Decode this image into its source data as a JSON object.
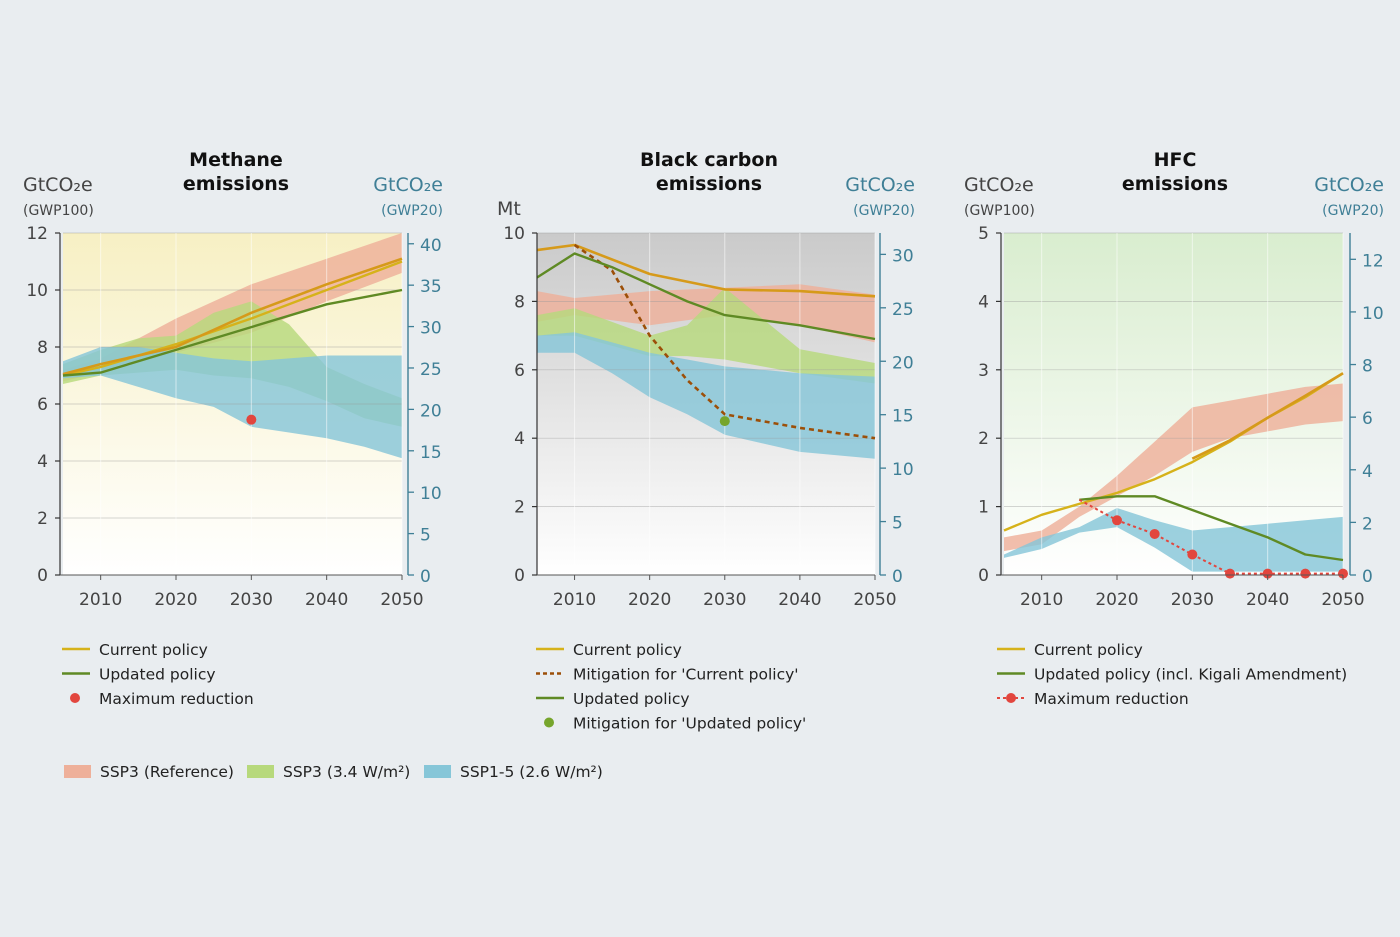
{
  "colors": {
    "current_policy": "#d6b21a",
    "current_policy_bc": "#d69a1a",
    "updated_policy": "#5f8a24",
    "max_reduction": "#e2463e",
    "mitigation_current": "#9c4f08",
    "mitigation_updated": "#76a52c",
    "ssp3_ref": "#eeb09a",
    "ssp3_34": "#b7d97c",
    "ssp1_5": "#86c6d8",
    "right_axis": "#3f7f96"
  },
  "chart_data": [
    {
      "type": "line",
      "title_lines": [
        "Methane",
        "emissions"
      ],
      "left_unit": "GtCO₂e",
      "left_unit_sub": "(GWP100)",
      "right_unit": "GtCO₂e",
      "right_unit_sub": "(GWP20)",
      "xlim": [
        2005,
        2050
      ],
      "x_ticks": [
        2010,
        2020,
        2030,
        2040,
        2050
      ],
      "ylim": [
        0,
        12
      ],
      "y_ticks": [
        0,
        2,
        4,
        6,
        8,
        10,
        12
      ],
      "y2lim": [
        0,
        41.3
      ],
      "y2_ticks": [
        0,
        5,
        10,
        15,
        20,
        25,
        30,
        35,
        40
      ],
      "background": "yellow",
      "bands": [
        {
          "name": "SSP3 (Reference)",
          "color_key": "ssp3_ref",
          "x": [
            2005,
            2010,
            2020,
            2030,
            2040,
            2050
          ],
          "lower": [
            6.8,
            7.1,
            7.8,
            8.5,
            9.6,
            10.6
          ],
          "upper": [
            7.2,
            7.6,
            9.0,
            10.2,
            11.1,
            12.0
          ]
        },
        {
          "name": "SSP3 (3.4 W/m²)",
          "color_key": "ssp3_34",
          "x": [
            2005,
            2010,
            2015,
            2020,
            2025,
            2030,
            2035,
            2040,
            2045,
            2050
          ],
          "lower": [
            6.7,
            7.0,
            7.1,
            7.2,
            7.0,
            6.9,
            6.6,
            6.1,
            5.5,
            5.2
          ],
          "upper": [
            7.4,
            7.9,
            8.3,
            8.4,
            9.2,
            9.6,
            8.8,
            7.3,
            6.7,
            6.2
          ]
        },
        {
          "name": "SSP1-5 (2.6 W/m²)",
          "color_key": "ssp1_5",
          "x": [
            2005,
            2010,
            2015,
            2020,
            2025,
            2030,
            2035,
            2040,
            2045,
            2050
          ],
          "lower": [
            6.9,
            7.0,
            6.6,
            6.2,
            5.9,
            5.2,
            5.0,
            4.8,
            4.5,
            4.1
          ],
          "upper": [
            7.5,
            8.0,
            8.0,
            7.8,
            7.6,
            7.5,
            7.6,
            7.7,
            7.7,
            7.7
          ]
        }
      ],
      "series": [
        {
          "name": "Current policy",
          "color_key": "current_policy",
          "width": 2.4,
          "x": [
            2005,
            2010,
            2020,
            2030,
            2040,
            2050
          ],
          "y": [
            7.0,
            7.3,
            8.1,
            9.0,
            10.0,
            11.0
          ]
        },
        {
          "name": "Current policy",
          "color_key": "current_policy_bc",
          "width": 2.6,
          "x": [
            2005,
            2010,
            2020,
            2030,
            2040,
            2050
          ],
          "y": [
            7.05,
            7.4,
            8.0,
            9.2,
            10.2,
            11.1
          ]
        },
        {
          "name": "Updated policy",
          "color_key": "updated_policy",
          "width": 2.4,
          "x": [
            2005,
            2010,
            2020,
            2030,
            2040,
            2050
          ],
          "y": [
            7.0,
            7.1,
            7.9,
            8.7,
            9.5,
            10.0
          ]
        }
      ],
      "points": [
        {
          "name": "Maximum reduction",
          "color_key": "max_reduction",
          "x": 2030,
          "y": 5.45
        }
      ],
      "legend": [
        {
          "kind": "line",
          "color_key": "current_policy",
          "label": "Current policy"
        },
        {
          "kind": "line",
          "color_key": "updated_policy",
          "label": "Updated policy"
        },
        {
          "kind": "dot",
          "color_key": "max_reduction",
          "label": "Maximum reduction"
        }
      ]
    },
    {
      "type": "line",
      "title_lines": [
        "Black carbon",
        "emissions"
      ],
      "left_unit": "Mt",
      "left_unit_sub": "",
      "right_unit": "GtCO₂e",
      "right_unit_sub": "(GWP20)",
      "xlim": [
        2005,
        2050
      ],
      "x_ticks": [
        2010,
        2020,
        2030,
        2040,
        2050
      ],
      "ylim": [
        0,
        10
      ],
      "y_ticks": [
        0,
        2,
        4,
        6,
        8,
        10
      ],
      "y2lim": [
        0,
        32
      ],
      "y2_ticks": [
        0,
        5,
        10,
        15,
        20,
        25,
        30
      ],
      "background": "grey",
      "bands": [
        {
          "name": "SSP3 (Reference)",
          "color_key": "ssp3_ref",
          "x": [
            2005,
            2010,
            2020,
            2030,
            2040,
            2050
          ],
          "lower": [
            7.4,
            7.6,
            7.3,
            7.6,
            7.3,
            6.8
          ],
          "upper": [
            8.3,
            8.1,
            8.3,
            8.4,
            8.5,
            8.2
          ]
        },
        {
          "name": "SSP3 (3.4 W/m²)",
          "color_key": "ssp3_34",
          "x": [
            2005,
            2010,
            2020,
            2025,
            2030,
            2035,
            2040,
            2050
          ],
          "lower": [
            7.0,
            7.0,
            6.4,
            6.4,
            6.3,
            6.1,
            5.9,
            5.6
          ],
          "upper": [
            7.6,
            7.8,
            7.0,
            7.3,
            8.4,
            7.5,
            6.6,
            6.2
          ]
        },
        {
          "name": "SSP1-5 (2.6 W/m²)",
          "color_key": "ssp1_5",
          "x": [
            2005,
            2010,
            2015,
            2020,
            2025,
            2030,
            2040,
            2050
          ],
          "lower": [
            6.5,
            6.5,
            5.9,
            5.2,
            4.7,
            4.1,
            3.6,
            3.4
          ],
          "upper": [
            7.0,
            7.1,
            6.8,
            6.5,
            6.3,
            6.1,
            5.9,
            5.8
          ]
        }
      ],
      "series": [
        {
          "name": "Current policy",
          "color_key": "current_policy_bc",
          "width": 2.6,
          "x": [
            2005,
            2010,
            2020,
            2030,
            2040,
            2050
          ],
          "y": [
            9.5,
            9.65,
            8.8,
            8.35,
            8.3,
            8.15
          ]
        },
        {
          "name": "Mitigation for 'Current policy'",
          "color_key": "mitigation_current",
          "width": 2.6,
          "dash": "5 4",
          "x": [
            2010,
            2015,
            2020,
            2025,
            2030,
            2040,
            2050
          ],
          "y": [
            9.65,
            8.9,
            7.0,
            5.7,
            4.7,
            4.3,
            4.0
          ]
        },
        {
          "name": "Updated policy",
          "color_key": "updated_policy",
          "width": 2.4,
          "x": [
            2005,
            2010,
            2015,
            2020,
            2025,
            2030,
            2040,
            2050
          ],
          "y": [
            8.7,
            9.4,
            9.0,
            8.5,
            8.0,
            7.6,
            7.3,
            6.9
          ]
        }
      ],
      "points": [
        {
          "name": "Mitigation for 'Updated policy'",
          "color_key": "mitigation_updated",
          "x": 2030,
          "y": 4.5
        }
      ],
      "legend": [
        {
          "kind": "line",
          "color_key": "current_policy",
          "label": "Current policy"
        },
        {
          "kind": "dash",
          "color_key": "mitigation_current",
          "label": "Mitigation for 'Current policy'"
        },
        {
          "kind": "line",
          "color_key": "updated_policy",
          "label": "Updated policy"
        },
        {
          "kind": "dot",
          "color_key": "mitigation_updated",
          "label": "Mitigation for 'Updated policy'"
        }
      ]
    },
    {
      "type": "line",
      "title_lines": [
        "HFC",
        "emissions"
      ],
      "left_unit": "GtCO₂e",
      "left_unit_sub": "(GWP100)",
      "right_unit": "GtCO₂e",
      "right_unit_sub": "(GWP20)",
      "xlim": [
        2005,
        2050
      ],
      "x_ticks": [
        2010,
        2020,
        2030,
        2040,
        2050
      ],
      "ylim": [
        0,
        5
      ],
      "y_ticks": [
        0,
        1,
        2,
        3,
        4,
        5
      ],
      "y2lim": [
        0,
        13
      ],
      "y2_ticks": [
        0,
        2,
        4,
        6,
        8,
        10,
        12
      ],
      "background": "green",
      "bands": [
        {
          "name": "SSP3 (Reference)",
          "color_key": "ssp3_ref",
          "x": [
            2005,
            2010,
            2015,
            2020,
            2025,
            2030,
            2035,
            2040,
            2045,
            2050
          ],
          "lower": [
            0.35,
            0.45,
            0.85,
            1.15,
            1.45,
            1.8,
            2.0,
            2.1,
            2.2,
            2.25
          ],
          "upper": [
            0.55,
            0.65,
            1.0,
            1.45,
            1.95,
            2.45,
            2.55,
            2.65,
            2.75,
            2.8
          ]
        },
        {
          "name": "SSP1-5 (2.6 W/m²)",
          "color_key": "ssp1_5",
          "x": [
            2005,
            2010,
            2015,
            2020,
            2025,
            2030,
            2035,
            2040,
            2045,
            2050
          ],
          "lower": [
            0.25,
            0.38,
            0.62,
            0.7,
            0.4,
            0.05,
            0.05,
            0.05,
            0.05,
            0.05
          ],
          "upper": [
            0.3,
            0.55,
            0.7,
            0.98,
            0.8,
            0.65,
            0.7,
            0.75,
            0.8,
            0.85
          ]
        }
      ],
      "series": [
        {
          "name": "Current policy",
          "color_key": "current_policy",
          "width": 2.4,
          "x": [
            2005,
            2010,
            2020,
            2025,
            2030,
            2035,
            2040,
            2045,
            2050
          ],
          "y": [
            0.65,
            0.88,
            1.2,
            1.4,
            1.65,
            1.95,
            2.3,
            2.6,
            2.95
          ]
        },
        {
          "name": "Current policy",
          "color_key": "current_policy_bc",
          "width": 2.6,
          "x": [
            2030,
            2035,
            2040,
            2045,
            2050
          ],
          "y": [
            1.7,
            1.97,
            2.3,
            2.62,
            2.95
          ]
        },
        {
          "name": "Updated policy (incl. Kigali Amendment)",
          "color_key": "updated_policy",
          "width": 2.4,
          "x": [
            2015,
            2020,
            2025,
            2030,
            2035,
            2040,
            2045,
            2050
          ],
          "y": [
            1.1,
            1.15,
            1.15,
            0.95,
            0.75,
            0.55,
            0.3,
            0.22
          ]
        },
        {
          "name": "Maximum reduction",
          "color_key": "max_reduction",
          "width": 2.0,
          "dash": "3 3",
          "x": [
            2015,
            2020,
            2025,
            2030,
            2035,
            2040,
            2045,
            2050
          ],
          "y": [
            1.1,
            0.8,
            0.6,
            0.3,
            0.02,
            0.02,
            0.02,
            0.02
          ]
        }
      ],
      "points": [
        {
          "name": "Maximum reduction",
          "color_key": "max_reduction",
          "x": 2020,
          "y": 0.8
        },
        {
          "name": "Maximum reduction",
          "color_key": "max_reduction",
          "x": 2025,
          "y": 0.6
        },
        {
          "name": "Maximum reduction",
          "color_key": "max_reduction",
          "x": 2030,
          "y": 0.3
        },
        {
          "name": "Maximum reduction",
          "color_key": "max_reduction",
          "x": 2035,
          "y": 0.02
        },
        {
          "name": "Maximum reduction",
          "color_key": "max_reduction",
          "x": 2040,
          "y": 0.02
        },
        {
          "name": "Maximum reduction",
          "color_key": "max_reduction",
          "x": 2045,
          "y": 0.02
        },
        {
          "name": "Maximum reduction",
          "color_key": "max_reduction",
          "x": 2050,
          "y": 0.02
        }
      ],
      "legend": [
        {
          "kind": "line",
          "color_key": "current_policy",
          "label": "Current policy"
        },
        {
          "kind": "line",
          "color_key": "updated_policy",
          "label": "Updated policy (incl. Kigali Amendment)"
        },
        {
          "kind": "dashdot",
          "color_key": "max_reduction",
          "label": "Maximum reduction"
        }
      ]
    }
  ],
  "shared_legend": [
    {
      "color_key": "ssp3_ref",
      "label": "SSP3 (Reference)"
    },
    {
      "color_key": "ssp3_34",
      "label": "SSP3 (3.4 W/m²)"
    },
    {
      "color_key": "ssp1_5",
      "label": "SSP1-5 (2.6 W/m²)"
    }
  ]
}
